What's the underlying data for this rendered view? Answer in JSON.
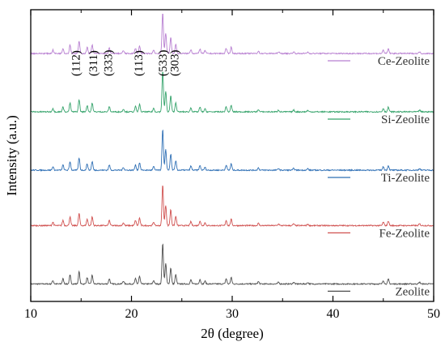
{
  "chart_data": {
    "type": "line",
    "title": "",
    "xlabel": "2θ (degree)",
    "ylabel": "Intensity (a.u.)",
    "xlim": [
      10,
      50
    ],
    "x_ticks": [
      10,
      20,
      30,
      40,
      50
    ],
    "y_ticks_shown": false,
    "grid": false,
    "legend": "inline-right",
    "series": [
      {
        "name": "Zeolite",
        "color": "#4d4d4d",
        "baseline": 0.06
      },
      {
        "name": "Fe-Zeolite",
        "color": "#d0504f",
        "baseline": 0.26
      },
      {
        "name": "Ti-Zeolite",
        "color": "#2e6fb5",
        "baseline": 0.45
      },
      {
        "name": "Si-Zeolite",
        "color": "#35a36b",
        "baseline": 0.65
      },
      {
        "name": "Ce-Zeolite",
        "color": "#b87fd1",
        "baseline": 0.85
      }
    ],
    "peaks": [
      {
        "x": 12.2,
        "h": 0.012
      },
      {
        "x": 13.2,
        "h": 0.018
      },
      {
        "x": 13.9,
        "h": 0.03
      },
      {
        "x": 14.8,
        "h": 0.042
      },
      {
        "x": 15.6,
        "h": 0.022
      },
      {
        "x": 16.1,
        "h": 0.03
      },
      {
        "x": 17.8,
        "h": 0.018
      },
      {
        "x": 19.2,
        "h": 0.01
      },
      {
        "x": 20.4,
        "h": 0.018
      },
      {
        "x": 20.8,
        "h": 0.026
      },
      {
        "x": 22.2,
        "h": 0.012
      },
      {
        "x": 23.1,
        "h": 0.14
      },
      {
        "x": 23.4,
        "h": 0.07
      },
      {
        "x": 23.9,
        "h": 0.055
      },
      {
        "x": 24.4,
        "h": 0.032
      },
      {
        "x": 25.9,
        "h": 0.014
      },
      {
        "x": 26.8,
        "h": 0.016
      },
      {
        "x": 27.3,
        "h": 0.01
      },
      {
        "x": 29.4,
        "h": 0.018
      },
      {
        "x": 29.9,
        "h": 0.022
      },
      {
        "x": 32.6,
        "h": 0.008
      },
      {
        "x": 34.6,
        "h": 0.006
      },
      {
        "x": 36.1,
        "h": 0.006
      },
      {
        "x": 37.5,
        "h": 0.005
      },
      {
        "x": 45.0,
        "h": 0.012
      },
      {
        "x": 45.5,
        "h": 0.016
      },
      {
        "x": 48.6,
        "h": 0.006
      }
    ],
    "annotations": [
      {
        "label": "(112)",
        "x": 14.6
      },
      {
        "label": "(311)",
        "x": 16.3
      },
      {
        "label": "(333)",
        "x": 17.8
      },
      {
        "label": "(113)",
        "x": 20.8
      },
      {
        "label": "(533)",
        "x": 23.2
      },
      {
        "label": "(303)",
        "x": 24.4
      }
    ]
  }
}
